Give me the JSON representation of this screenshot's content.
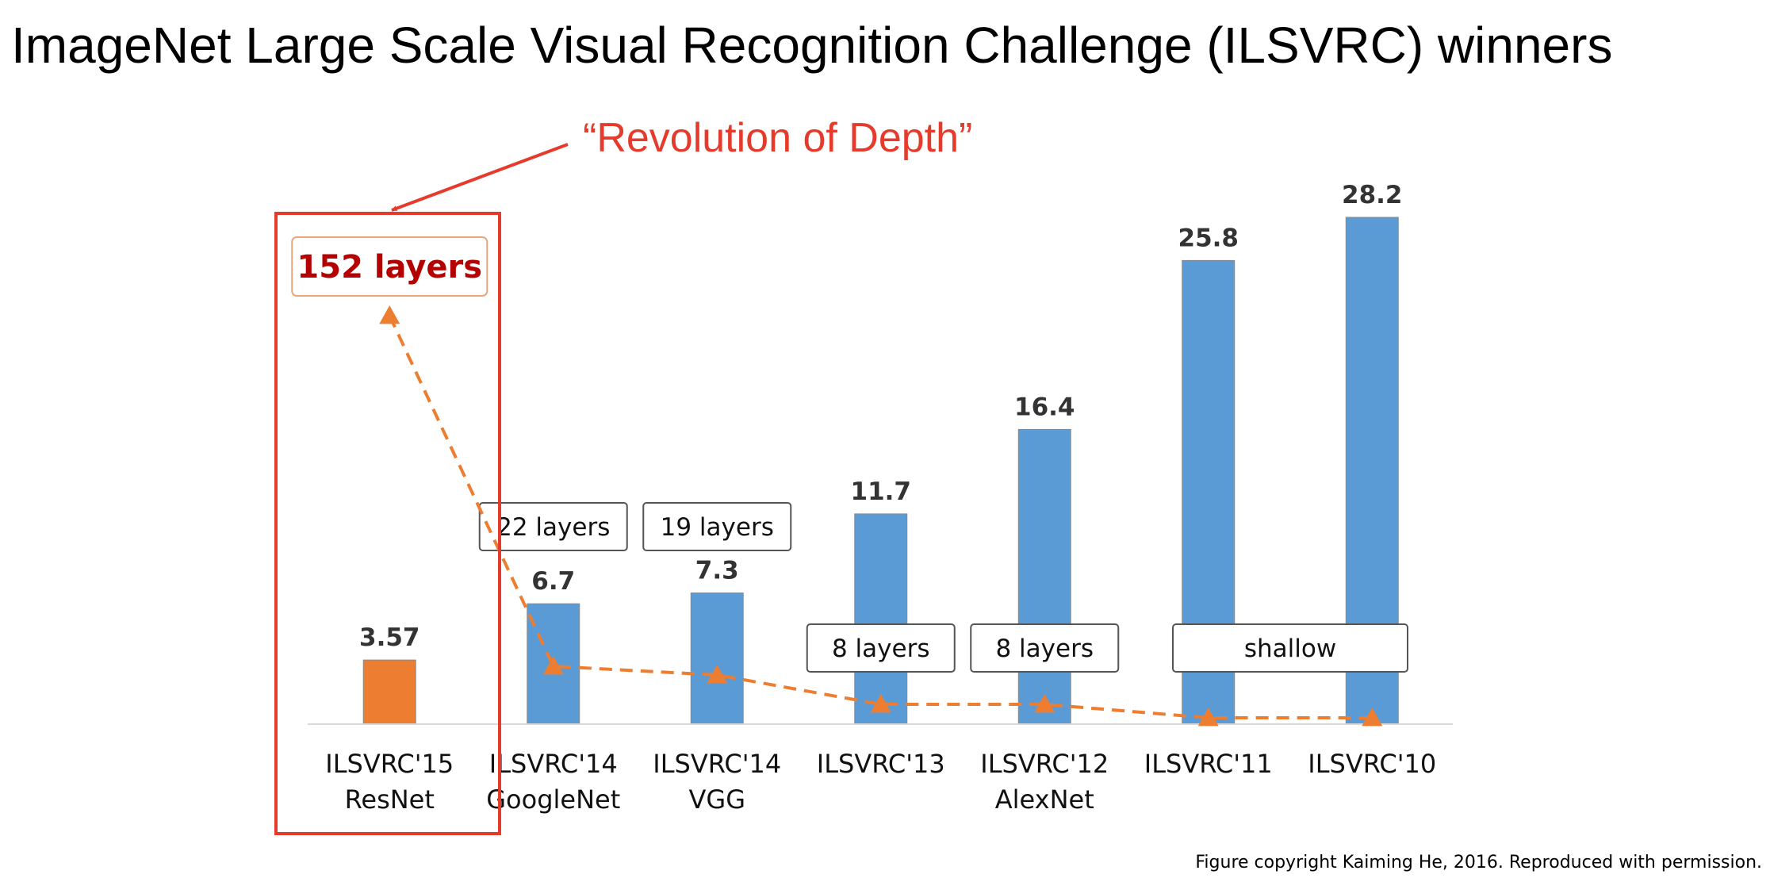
{
  "title": "ImageNet Large Scale Visual Recognition Challenge (ILSVRC) winners",
  "annotation": {
    "text": "“Revolution of Depth”",
    "color": "#e53b2c"
  },
  "copyright": "Figure copyright Kaiming He, 2016. Reproduced with permission.",
  "colors": {
    "highlight_bar": "#ed7d31",
    "bar": "#5b9bd5",
    "line": "#ed7d31",
    "depth_main_text": "#b40000",
    "depth_main_border": "#e8a67a",
    "box_border": "#555555"
  },
  "chart_data": {
    "type": "bar",
    "title": "ImageNet Large Scale Visual Recognition Challenge (ILSVRC) winners",
    "xlabel": "",
    "ylabel": "",
    "ylim": [
      0,
      30
    ],
    "grid": false,
    "categories": [
      [
        "ILSVRC'15",
        "ResNet"
      ],
      [
        "ILSVRC'14",
        "GoogleNet"
      ],
      [
        "ILSVRC'14",
        "VGG"
      ],
      [
        "ILSVRC'13"
      ],
      [
        "ILSVRC'12",
        "AlexNet"
      ],
      [
        "ILSVRC'11"
      ],
      [
        "ILSVRC'10"
      ]
    ],
    "values": [
      3.57,
      6.7,
      7.3,
      11.7,
      16.4,
      25.8,
      28.2
    ],
    "value_labels": [
      "3.57",
      "6.7",
      "7.3",
      "11.7",
      "16.4",
      "25.8",
      "28.2"
    ],
    "highlight_index": 0,
    "depth_labels": [
      {
        "text": "152 layers",
        "categories": [
          0
        ],
        "emphasis": true
      },
      {
        "text": "22 layers",
        "categories": [
          1
        ]
      },
      {
        "text": "19 layers",
        "categories": [
          2
        ]
      },
      {
        "text": "8 layers",
        "categories": [
          3
        ]
      },
      {
        "text": "8 layers",
        "categories": [
          4
        ]
      },
      {
        "text": "shallow",
        "categories": [
          5,
          6
        ]
      }
    ],
    "depth_series": {
      "name": "Depth",
      "style": "dashed line with triangle markers",
      "layers": [
        152,
        22,
        19,
        8,
        8,
        null,
        null
      ]
    }
  }
}
